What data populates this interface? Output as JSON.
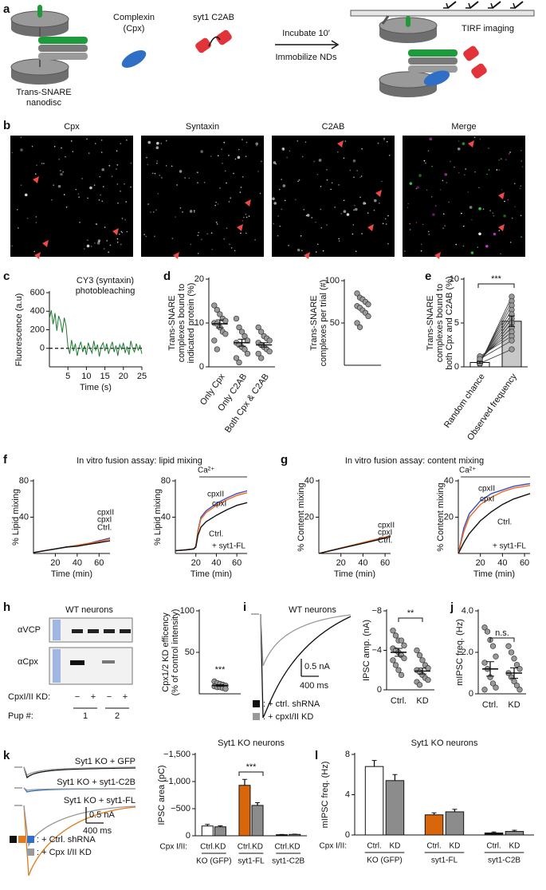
{
  "panel_labels": [
    "a",
    "b",
    "c",
    "d",
    "e",
    "f",
    "g",
    "h",
    "i",
    "j",
    "k",
    "l"
  ],
  "diagram": {
    "nanodisc": [
      "Trans-SNARE",
      "nanodisc"
    ],
    "complexin": [
      "Complexin",
      "(Cpx)"
    ],
    "c2ab": "syt1 C2AB",
    "step": [
      "Incubate 10′",
      "Immobilize NDs"
    ],
    "tirf": "TIRF imaging"
  },
  "imaging": {
    "titles": [
      "Cpx",
      "Syntaxin",
      "C2AB",
      "Merge"
    ],
    "title_colors": [
      "#2f7fd0",
      "#2aa02a",
      "#e0473a",
      "#222222"
    ]
  },
  "headers": {
    "f": "In vitro fusion assay: lipid mixing",
    "g": "In vitro fusion assay: content mixing"
  },
  "blot": {
    "title": "WT neurons",
    "rows": [
      "αVCP",
      "αCpx"
    ],
    "kd_label": "CpxI/II KD:",
    "kd": [
      "−",
      "+",
      "−",
      "+"
    ],
    "pup_label": "Pup #:",
    "pups": [
      "1",
      "2"
    ]
  },
  "traces_i": {
    "title": "WT neurons",
    "scale": [
      "0.5 nA",
      "400 ms"
    ],
    "legend": [
      ": + ctrl. shRNA",
      ": + cpxI/II KD"
    ]
  },
  "traces_k": {
    "labels": [
      "Syt1 KO + GFP",
      "Syt1 KO + syt1-C2B",
      "Syt1 KO + syt1-FL"
    ],
    "scale": [
      "0.5 nA",
      "400 ms"
    ],
    "legend": [
      ": + Ctrl. shRNA",
      ": + Cpx I/II KD"
    ]
  },
  "chart_data": [
    {
      "type": "line",
      "annotation": [
        "CY3 (syntaxin)",
        "photobleaching"
      ],
      "x_label": "Time (s)",
      "y_label": [
        "Fluorescence (a.u)"
      ],
      "x": [
        0,
        0.5,
        1,
        1.5,
        2,
        2.5,
        3,
        3.5,
        4,
        4.5,
        5,
        5.5,
        6,
        6.5,
        7,
        7.5,
        8,
        8.5,
        9,
        9.5,
        10,
        10.5,
        11,
        11.5,
        12,
        12.5,
        13,
        13.5,
        14,
        14.5,
        15,
        15.5,
        16,
        16.5,
        17,
        17.5,
        18,
        18.5,
        19,
        19.5,
        20,
        20.5,
        21,
        21.5,
        22,
        22.5,
        23,
        23.5,
        24,
        24.5,
        25
      ],
      "values": [
        320,
        410,
        260,
        380,
        190,
        350,
        290,
        170,
        330,
        240,
        20,
        -60,
        90,
        -30,
        50,
        -80,
        10,
        70,
        -40,
        30,
        -70,
        60,
        0,
        -50,
        80,
        -20,
        40,
        -90,
        20,
        60,
        -30,
        50,
        -60,
        10,
        70,
        -40,
        30,
        -80,
        40,
        -10,
        60,
        -50,
        20,
        -70,
        80,
        0,
        -40,
        50,
        -20,
        30,
        -60
      ],
      "color": "#1d7a2e",
      "reference_line": 0,
      "xlim": [
        0,
        25
      ],
      "xticks": [
        5,
        10,
        15,
        20,
        25
      ],
      "ylim": [
        -200,
        600
      ],
      "yticks": [
        0,
        200,
        400,
        600
      ]
    },
    {
      "type": "dot",
      "y_label": [
        "Trans-SNARE",
        "complexes bound to",
        "indicated protein (%)"
      ],
      "categories": [
        "Only Cpx",
        "Only C2AB",
        "Both Cpx & C2AB"
      ],
      "points": [
        [
          14,
          13,
          12,
          11,
          10.5,
          10,
          9.8,
          9,
          8,
          7.5,
          6,
          4
        ],
        [
          11,
          9,
          8,
          7,
          6,
          5.5,
          5,
          4.5,
          4,
          3,
          2,
          1
        ],
        [
          9,
          8,
          7,
          6.5,
          6,
          5.5,
          5,
          4.5,
          4,
          3.5,
          3,
          2
        ]
      ],
      "values": [
        9.8,
        5.5,
        5.0
      ],
      "errors": [
        0.9,
        0.8,
        0.5
      ],
      "point_color": "#9a9a9a",
      "ylim": [
        0,
        20
      ],
      "yticks": [
        0,
        10,
        20
      ]
    },
    {
      "type": "dot",
      "y_label": [
        "Trans-SNARE",
        "complexes per trial (#)"
      ],
      "points": [
        [
          85,
          80,
          78,
          75,
          72,
          70,
          68,
          65,
          62,
          58,
          50,
          45
        ]
      ],
      "point_color": "#9a9a9a",
      "ylim": [
        0,
        100
      ],
      "yticks": [
        50,
        100
      ]
    },
    {
      "type": "paired",
      "y_label": [
        "Trans-SNARE",
        "complexes bound to",
        "both Cpx and C2AB (%)"
      ],
      "categories": [
        "Random chance",
        "Observed frequency"
      ],
      "values": [
        0.5,
        5.2
      ],
      "errors": [
        0.1,
        0.6
      ],
      "bar_colors": [
        "#ffffff",
        "#c8c8c8"
      ],
      "point_color": "#9a9a9a",
      "points": [
        [
          0.3,
          0.4,
          0.5,
          0.5,
          0.6,
          0.6,
          0.7,
          0.8,
          1.0,
          1.2,
          0.9,
          0.4
        ],
        [
          8,
          7.5,
          7,
          6.5,
          6,
          5.5,
          5,
          4.5,
          4,
          3.5,
          3,
          2
        ]
      ],
      "significance": "***",
      "ylim": [
        0,
        10
      ],
      "yticks": [
        0,
        5,
        10
      ]
    },
    {
      "type": "line",
      "x_label": "Time (min)",
      "y_label": [
        "% Lipid mixing"
      ],
      "x": [
        0,
        10,
        20,
        30,
        40,
        50,
        60,
        70
      ],
      "series": [
        {
          "name": "cpxII",
          "color": "#3b4fc4",
          "values": [
            1,
            3,
            5,
            7,
            9,
            11,
            14,
            17
          ]
        },
        {
          "name": "cpxI",
          "color": "#f06a1e",
          "values": [
            1,
            3,
            5,
            7,
            9,
            11,
            13,
            16
          ]
        },
        {
          "name": "Ctrl.",
          "color": "#111111",
          "values": [
            1,
            3,
            5,
            7,
            8,
            10,
            12,
            14
          ]
        }
      ],
      "xlim": [
        0,
        70
      ],
      "xticks": [
        20,
        40,
        60
      ],
      "ylim": [
        0,
        80
      ],
      "yticks": [
        40,
        80
      ]
    },
    {
      "type": "line",
      "x_label": "Time (min)",
      "y_label": [
        "% Lipid mixing"
      ],
      "annotation": [
        "Ca²⁺",
        "+ syt1-FL"
      ],
      "x": [
        0,
        10,
        18,
        20,
        22,
        25,
        30,
        40,
        50,
        60,
        70
      ],
      "series": [
        {
          "name": "cpxII",
          "color": "#3b4fc4",
          "values": [
            3,
            4,
            5,
            8,
            25,
            40,
            47,
            55,
            61,
            66,
            69
          ]
        },
        {
          "name": "cpxI",
          "color": "#f06a1e",
          "values": [
            3,
            4,
            5,
            8,
            24,
            38,
            45,
            53,
            59,
            64,
            67
          ]
        },
        {
          "name": "Ctrl.",
          "color": "#111111",
          "values": [
            3,
            4,
            5,
            7,
            20,
            29,
            35,
            42,
            48,
            53,
            56
          ]
        }
      ],
      "xlim": [
        0,
        70
      ],
      "xticks": [
        20,
        40,
        60
      ],
      "ylim": [
        0,
        80
      ],
      "yticks": [
        40,
        80
      ]
    },
    {
      "type": "line",
      "x_label": "Time (min)",
      "y_label": [
        "% Content mixing"
      ],
      "x": [
        0,
        10,
        20,
        30,
        40,
        50,
        60,
        65
      ],
      "series": [
        {
          "name": "cpxII",
          "color": "#3b4fc4",
          "values": [
            0,
            1.5,
            3,
            4.5,
            6,
            7.5,
            9,
            10
          ]
        },
        {
          "name": "cpxI",
          "color": "#f06a1e",
          "values": [
            0,
            1.5,
            3,
            4.5,
            6,
            7.5,
            9,
            9.7
          ]
        },
        {
          "name": "Ctrl.",
          "color": "#111111",
          "values": [
            0,
            1.4,
            2.8,
            4.2,
            5.6,
            7,
            8.5,
            9.3
          ]
        }
      ],
      "xlim": [
        0,
        65
      ],
      "xticks": [
        20,
        40,
        60
      ],
      "ylim": [
        0,
        40
      ],
      "yticks": [
        20,
        40
      ]
    },
    {
      "type": "line",
      "x_label": "Time (min)",
      "y_label": [
        "% Content mixing"
      ],
      "annotation": [
        "Ca²⁺",
        "+ syt1-FL"
      ],
      "x": [
        0,
        5,
        10,
        20,
        30,
        40,
        50,
        60,
        65
      ],
      "series": [
        {
          "name": "cpxII",
          "color": "#3b4fc4",
          "values": [
            0,
            14,
            22,
            29,
            33,
            35,
            37,
            38,
            38.5
          ]
        },
        {
          "name": "cpxI",
          "color": "#f06a1e",
          "values": [
            0,
            12,
            20,
            27,
            31,
            34,
            36,
            37,
            37.5
          ]
        },
        {
          "name": "Ctrl.",
          "color": "#111111",
          "values": [
            0,
            6,
            11,
            18,
            23,
            27,
            30,
            32,
            33
          ]
        }
      ],
      "xlim": [
        0,
        65
      ],
      "xticks": [
        20,
        40,
        60
      ],
      "ylim": [
        0,
        40
      ],
      "yticks": [
        20,
        40
      ]
    },
    {
      "type": "dot",
      "y_label": [
        "Cpx1/2 KD efficency",
        "(% of control intensity)"
      ],
      "points": [
        [
          15,
          13,
          12,
          11,
          10,
          9,
          8,
          8,
          7,
          6
        ]
      ],
      "values": [
        10
      ],
      "errors": [
        1
      ],
      "significance": "***",
      "point_color": "#9a9a9a",
      "ylim": [
        0,
        100
      ],
      "yticks": [
        50,
        100
      ]
    },
    {
      "type": "dot",
      "y_label": [
        "IPSC amp. (nA)"
      ],
      "categories": [
        "Ctrl.",
        "KD"
      ],
      "points": [
        [
          -6,
          -5.5,
          -5,
          -5,
          -4.5,
          -4.2,
          -4,
          -3.8,
          -3.5,
          -3.2,
          -3,
          -2.5,
          -2,
          -1.5
        ],
        [
          -4,
          -3.5,
          -3,
          -2.5,
          -2.2,
          -2,
          -1.8,
          -1.5,
          -1.2,
          -1,
          -0.8,
          -0.5
        ]
      ],
      "values": [
        -3.8,
        -1.9
      ],
      "errors": [
        0.4,
        0.3
      ],
      "significance": "**",
      "point_color": "#9a9a9a",
      "ylim": [
        0,
        -8
      ],
      "yticks": [
        {
          "value": -8,
          "label": "−8"
        },
        {
          "value": -4,
          "label": "−4"
        },
        0
      ]
    },
    {
      "type": "dot",
      "y_label": [
        "mIPSC freq. (Hz)"
      ],
      "categories": [
        "Ctrl.",
        "KD"
      ],
      "points": [
        [
          3.2,
          3,
          2.6,
          2.3,
          1.8,
          1.5,
          1.2,
          0.8,
          0.5,
          0.3,
          0.2
        ],
        [
          2.3,
          2,
          1.7,
          1.4,
          1.2,
          1,
          0.8,
          0.6,
          0.4,
          0.2
        ]
      ],
      "values": [
        1.2,
        1.0
      ],
      "errors": [
        0.35,
        0.25
      ],
      "significance": "n.s.",
      "point_color": "#9a9a9a",
      "ylim": [
        0,
        4
      ],
      "yticks": [
        0,
        {
          "value": 2,
          "label": "2.0"
        },
        {
          "value": 4,
          "label": "4.0"
        }
      ]
    },
    {
      "type": "grouped_bar",
      "title": "Syt1 KO neurons",
      "y_label": [
        "IPSC area (pC)"
      ],
      "row_label": "Cpx I/II:",
      "categories": [
        "KO (GFP)",
        "syt1-FL",
        "syt1-C2B"
      ],
      "series": [
        {
          "name": "Ctrl.",
          "colors": [
            "#ffffff",
            "#d9660b",
            "#111111"
          ],
          "values": [
            -180,
            -930,
            -20
          ],
          "errors": [
            30,
            110,
            5
          ]
        },
        {
          "name": "KD",
          "color": "#8c8c8c",
          "values": [
            -165,
            -560,
            -25
          ],
          "errors": [
            20,
            50,
            5
          ]
        }
      ],
      "significance": "***",
      "ylim": [
        0,
        -1500
      ],
      "yticks": [
        0,
        {
          "value": -500,
          "label": "−500"
        },
        {
          "value": -1000,
          "label": "−1,000"
        },
        {
          "value": -1500,
          "label": "−1,500"
        }
      ]
    },
    {
      "type": "grouped_bar",
      "title": "Syt1 KO neurons",
      "y_label": [
        "mIPSC freq. (Hz)"
      ],
      "row_label": "Cpx I/II:",
      "categories": [
        "KO (GFP)",
        "syt1-FL",
        "syt1-C2B"
      ],
      "series": [
        {
          "name": "Ctrl.",
          "colors": [
            "#ffffff",
            "#d9660b",
            "#111111"
          ],
          "values": [
            6.8,
            2.0,
            0.2
          ],
          "errors": [
            0.6,
            0.2,
            0.1
          ]
        },
        {
          "name": "KD",
          "color": "#8c8c8c",
          "values": [
            5.4,
            2.3,
            0.35
          ],
          "errors": [
            0.6,
            0.25,
            0.12
          ]
        }
      ],
      "ylim": [
        0,
        8
      ],
      "yticks": [
        0,
        4,
        8
      ]
    }
  ]
}
